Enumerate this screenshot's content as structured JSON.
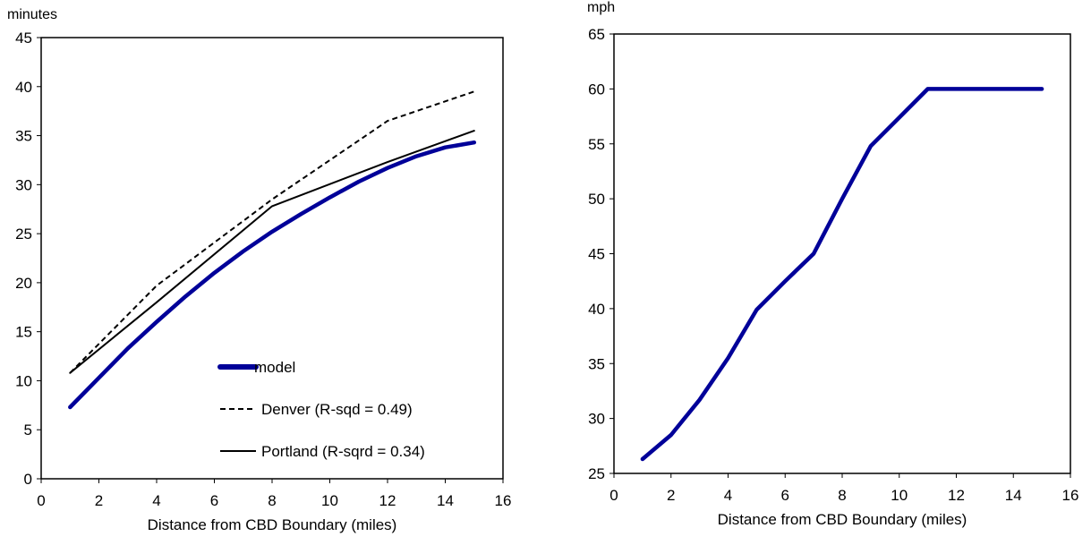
{
  "chart_data": [
    {
      "type": "line",
      "ylabel": "minutes",
      "xlabel": "Distance from CBD Boundary (miles)",
      "xlim": [
        0,
        16
      ],
      "ylim": [
        0,
        45
      ],
      "x_ticks": [
        0,
        2,
        4,
        6,
        8,
        10,
        12,
        14,
        16
      ],
      "y_ticks": [
        0,
        5,
        10,
        15,
        20,
        25,
        30,
        35,
        40,
        45
      ],
      "grid": false,
      "legend_position": "bottom-right",
      "series": [
        {
          "name": "model",
          "style": "thick",
          "color": "#000099",
          "x": [
            1,
            2,
            3,
            4,
            5,
            6,
            7,
            8,
            9,
            10,
            11,
            12,
            13,
            14,
            15
          ],
          "y": [
            7.3,
            10.3,
            13.3,
            16.0,
            18.6,
            21.0,
            23.2,
            25.2,
            27.0,
            28.7,
            30.3,
            31.7,
            32.9,
            33.8,
            34.3
          ]
        },
        {
          "name": "Denver (R-sqd = 0.49)",
          "style": "dashed",
          "color": "#000000",
          "x": [
            1,
            4,
            8,
            12,
            15
          ],
          "y": [
            10.8,
            19.7,
            28.5,
            36.5,
            39.5
          ]
        },
        {
          "name": "Portland (R-sqrd = 0.34)",
          "style": "solid",
          "color": "#000000",
          "x": [
            1,
            4,
            8,
            12,
            15
          ],
          "y": [
            10.8,
            18.0,
            27.8,
            32.3,
            35.5
          ]
        }
      ]
    },
    {
      "type": "line",
      "ylabel": "mph",
      "xlabel": "Distance from CBD Boundary (miles)",
      "xlim": [
        0,
        16
      ],
      "ylim": [
        25,
        65
      ],
      "x_ticks": [
        0,
        2,
        4,
        6,
        8,
        10,
        12,
        14,
        16
      ],
      "y_ticks": [
        25,
        30,
        35,
        40,
        45,
        50,
        55,
        60,
        65
      ],
      "grid": false,
      "series": [
        {
          "color": "#000099",
          "x": [
            1,
            2,
            3,
            4,
            5,
            6,
            7,
            8,
            9,
            10,
            11,
            12,
            13,
            14,
            15
          ],
          "y": [
            26.3,
            28.5,
            31.7,
            35.5,
            39.9,
            42.5,
            45.0,
            50.0,
            54.8,
            57.4,
            60.0,
            60.0,
            60.0,
            60.0,
            60.0
          ]
        }
      ]
    }
  ]
}
